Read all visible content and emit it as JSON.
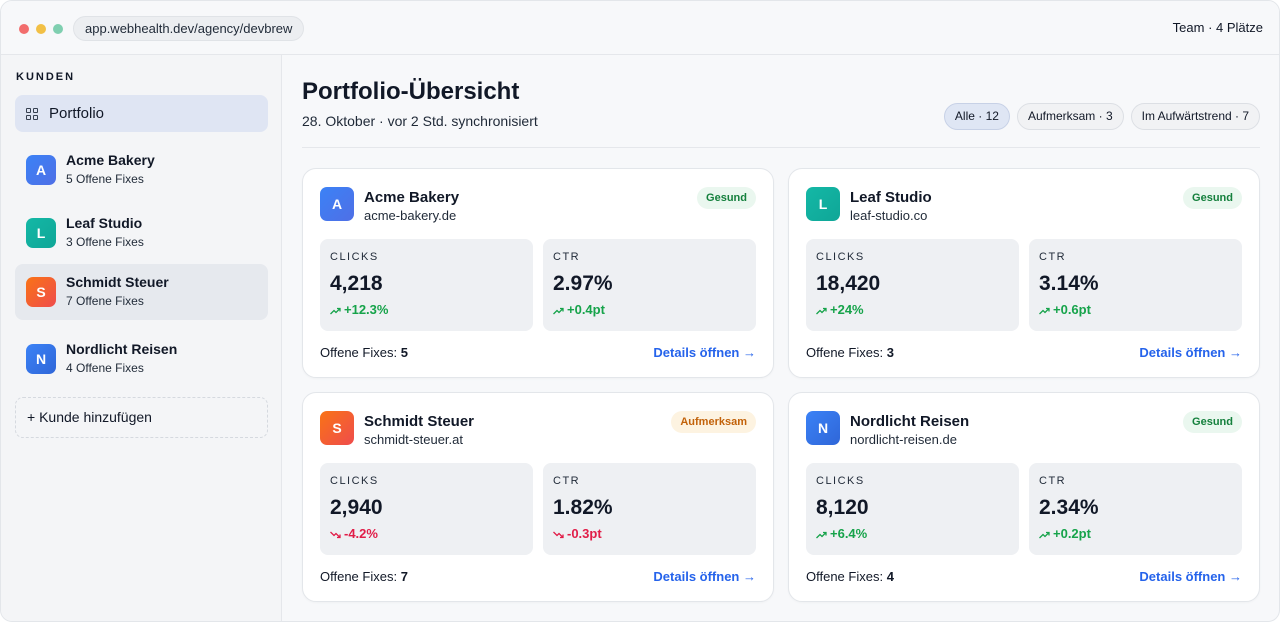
{
  "window": {
    "url": "app.webhealth.dev/agency/devbrew",
    "team": "Team · 4 Plätze"
  },
  "sidebar": {
    "heading": "KUNDEN",
    "portfolio_label": "Portfolio",
    "clients": [
      {
        "initial": "A",
        "name": "Acme Bakery",
        "fixes": "5 Offene Fixes"
      },
      {
        "initial": "L",
        "name": "Leaf Studio",
        "fixes": "3 Offene Fixes"
      },
      {
        "initial": "S",
        "name": "Schmidt Steuer",
        "fixes": "7 Offene Fixes"
      },
      {
        "initial": "N",
        "name": "Nordlicht Reisen",
        "fixes": "4 Offene Fixes"
      }
    ],
    "add_client": "+ Kunde hinzufügen"
  },
  "header": {
    "title": "Portfolio-Übersicht",
    "subtitle": "28. Oktober · vor 2 Std. synchronisiert",
    "filters": [
      "Alle · 12",
      "Aufmerksam · 3",
      "Im Aufwärtstrend · 7"
    ]
  },
  "cards": [
    {
      "initial": "A",
      "name": "Acme Bakery",
      "domain": "acme-bakery.de",
      "badge": "Gesund",
      "clicks_label": "CLICKS",
      "clicks": "4,218",
      "clicks_delta": "+12.3%",
      "ctr_label": "CTR",
      "ctr": "2.97%",
      "ctr_delta": "+0.4pt",
      "fixes_label": "Offene Fixes:",
      "fixes": "5",
      "details": "Details öffnen →"
    },
    {
      "initial": "L",
      "name": "Leaf Studio",
      "domain": "leaf-studio.co",
      "badge": "Gesund",
      "clicks_label": "CLICKS",
      "clicks": "18,420",
      "clicks_delta": "+24%",
      "ctr_label": "CTR",
      "ctr": "3.14%",
      "ctr_delta": "+0.6pt",
      "fixes_label": "Offene Fixes:",
      "fixes": "3",
      "details": "Details öffnen →"
    },
    {
      "initial": "S",
      "name": "Schmidt Steuer",
      "domain": "schmidt-steuer.at",
      "badge": "Aufmerksam",
      "clicks_label": "CLICKS",
      "clicks": "2,940",
      "clicks_delta": "-4.2%",
      "ctr_label": "CTR",
      "ctr": "1.82%",
      "ctr_delta": "-0.3pt",
      "fixes_label": "Offene Fixes:",
      "fixes": "7",
      "details": "Details öffnen →"
    },
    {
      "initial": "N",
      "name": "Nordlicht Reisen",
      "domain": "nordlicht-reisen.de",
      "badge": "Gesund",
      "clicks_label": "CLICKS",
      "clicks": "8,120",
      "clicks_delta": "+6.4%",
      "ctr_label": "CTR",
      "ctr": "2.34%",
      "ctr_delta": "+0.2pt",
      "fixes_label": "Offene Fixes:",
      "fixes": "4",
      "details": "Details öffnen →"
    }
  ],
  "colors": {
    "accent": "#2563eb",
    "positive": "#16a34a",
    "negative": "#e11d48",
    "healthy_badge": "#15803d",
    "attention_badge": "#c2620a"
  },
  "icons": {
    "portfolio": "grid-icon",
    "trend_up": "trend-up-icon",
    "trend_down": "trend-down-icon"
  }
}
